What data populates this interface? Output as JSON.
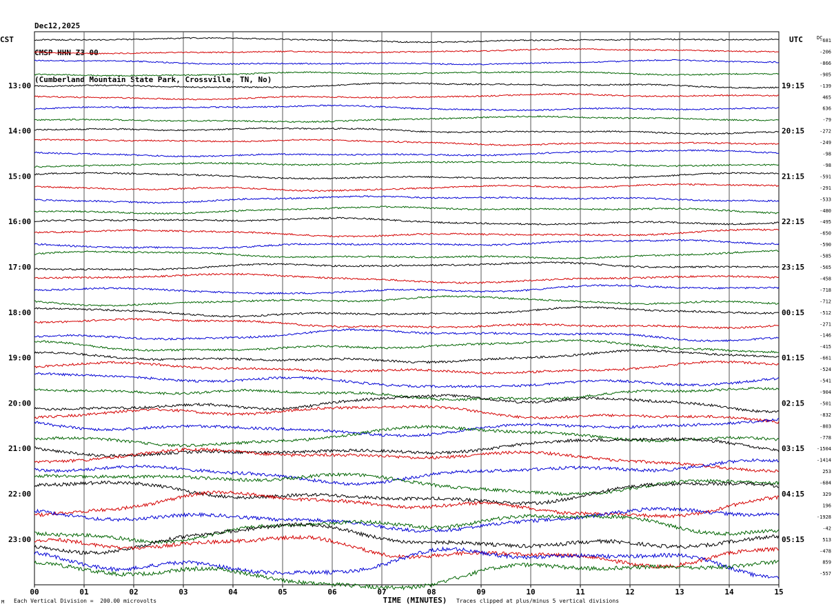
{
  "header": {
    "date": "Dec12,2025",
    "station": "CMSP HHN Z3 00",
    "location": "(Cumberland Mountain State Park, Crossville, TN, No)"
  },
  "left_timezone": "CST",
  "right_timezone": "UTC",
  "dc_label": "DC",
  "footer": {
    "mark": "M",
    "scale_note": "Each Vertical Division =  200.00 microvolts",
    "clip_note": "Traces clipped at plus/minus 5 vertical divisions"
  },
  "colors": {
    "cycle": [
      "#000000",
      "#d40000",
      "#0000d4",
      "#006400"
    ],
    "grid": "#555555"
  },
  "chart_data": {
    "type": "line",
    "title": "CMSP HHN Z3 00",
    "xlabel": "TIME (MINUTES)",
    "ylabel": "",
    "xlim": [
      0,
      15
    ],
    "x_ticks": [
      "00",
      "01",
      "02",
      "03",
      "04",
      "05",
      "06",
      "07",
      "08",
      "09",
      "10",
      "11",
      "12",
      "13",
      "14",
      "15"
    ],
    "grid": "vertical",
    "rows_per_hour": 4,
    "left_hour_labels": [
      "13:00",
      "14:00",
      "15:00",
      "16:00",
      "17:00",
      "18:00",
      "19:00",
      "20:00",
      "21:00",
      "22:00",
      "23:00"
    ],
    "right_hour_labels": [
      "19:15",
      "20:15",
      "21:15",
      "22:15",
      "23:15",
      "00:15",
      "01:15",
      "02:15",
      "03:15",
      "04:15",
      "05:15"
    ],
    "dc_offsets": [
      "-681",
      "-206",
      "-866",
      "-905",
      "-139",
      "465",
      "636",
      "-79",
      "-272",
      "-249",
      "-98",
      "-98",
      "-591",
      "-291",
      "-533",
      "-480",
      "-495",
      "-650",
      "-590",
      "-585",
      "-565",
      "-458",
      "-718",
      "-712",
      "-512",
      "-271",
      "-146",
      "-415",
      "-661",
      "-524",
      "-541",
      "-904",
      "-501",
      "-832",
      "-803",
      "-778",
      "-1504",
      "-1414",
      "253",
      "-684",
      "329",
      "196",
      "-1928",
      "-42",
      "513",
      "-478",
      "859",
      "-557"
    ]
  }
}
